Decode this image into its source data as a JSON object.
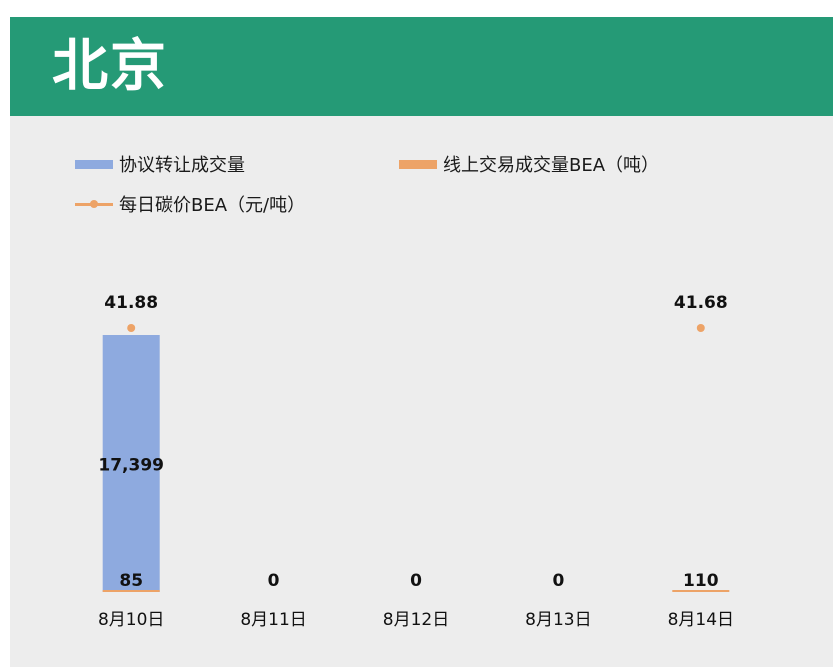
{
  "header": {
    "title": "北京"
  },
  "legend": [
    {
      "label": "协议转让成交量",
      "color": "#8eaadf",
      "kind": "bar"
    },
    {
      "label": "线上交易成交量BEA（吨）",
      "color": "#eda367",
      "kind": "bar"
    },
    {
      "label": "每日碳价BEA（元/吨）",
      "color": "#eda367",
      "kind": "line"
    }
  ],
  "chart_data": {
    "type": "bar",
    "categories": [
      "8月10日",
      "8月11日",
      "8月12日",
      "8月13日",
      "8月14日"
    ],
    "series": [
      {
        "name": "协议转让成交量",
        "type": "bar",
        "color": "#8eaadf",
        "values": [
          17399,
          0,
          0,
          0,
          0
        ],
        "labels": [
          "17,399",
          "",
          "",
          "",
          ""
        ]
      },
      {
        "name": "线上交易成交量BEA（吨）",
        "type": "bar",
        "color": "#eda367",
        "values": [
          85,
          0,
          0,
          0,
          110
        ],
        "labels": [
          "85",
          "0",
          "0",
          "0",
          "110"
        ]
      },
      {
        "name": "每日碳价BEA（元/吨）",
        "type": "scatter",
        "color": "#eda367",
        "values": [
          41.88,
          null,
          null,
          null,
          41.68
        ],
        "labels": [
          "41.88",
          "",
          "",
          "",
          "41.68"
        ]
      }
    ],
    "ylim": [
      0,
      17399
    ],
    "grid": false,
    "legend_position": "top-left"
  }
}
